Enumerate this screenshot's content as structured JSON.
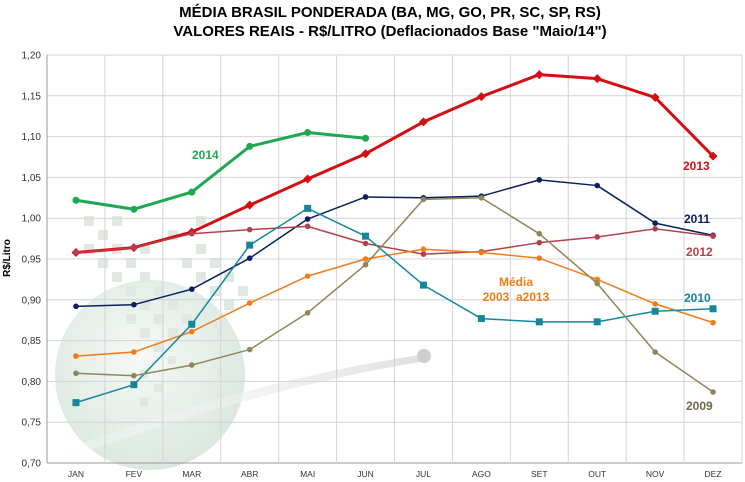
{
  "chart_data": {
    "type": "line",
    "title": "MÉDIA BRASIL PONDERADA (BA, MG, GO, PR, SC, SP, RS)",
    "subtitle": "VALORES REAIS - R$/LITRO (Deflacionados Base \"Maio/14\")",
    "xlabel": "",
    "ylabel": "R$/Litro",
    "ylim": [
      0.7,
      1.2
    ],
    "yticks": [
      "0,70",
      "0,75",
      "0,80",
      "0,85",
      "0,90",
      "0,95",
      "1,00",
      "1,05",
      "1,10",
      "1,15",
      "1,20"
    ],
    "ytick_values": [
      0.7,
      0.75,
      0.8,
      0.85,
      0.9,
      0.95,
      1.0,
      1.05,
      1.1,
      1.15,
      1.2
    ],
    "categories": [
      "JAN",
      "FEV",
      "MAR",
      "ABR",
      "MAI",
      "JUN",
      "JUL",
      "AGO",
      "SET",
      "OUT",
      "NOV",
      "DEZ"
    ],
    "grid": true,
    "series": [
      {
        "name": "2014",
        "label": "2014",
        "color": "#1fa84f",
        "marker": "circle",
        "values": [
          1.022,
          1.011,
          1.032,
          1.088,
          1.105,
          1.098,
          null,
          null,
          null,
          null,
          null,
          null
        ]
      },
      {
        "name": "2013",
        "label": "2013",
        "color": "#d40f14",
        "marker": "diamond",
        "values": [
          0.958,
          0.964,
          0.983,
          1.016,
          1.048,
          1.079,
          1.118,
          1.149,
          1.176,
          1.171,
          1.148,
          1.076
        ]
      },
      {
        "name": "2011",
        "label": "2011",
        "color": "#0b1f5c",
        "marker": "circle",
        "values": [
          0.892,
          0.894,
          0.913,
          0.951,
          0.999,
          1.026,
          1.025,
          1.027,
          1.047,
          1.04,
          0.994,
          0.979
        ]
      },
      {
        "name": "2012",
        "label": "2012",
        "color": "#b3404a",
        "marker": "circle",
        "values": [
          0.958,
          0.964,
          0.981,
          0.986,
          0.99,
          0.969,
          0.956,
          0.959,
          0.97,
          0.977,
          0.987,
          0.978
        ]
      },
      {
        "name": "Média 2003 a 2013",
        "label_lines": [
          "Média",
          "2003  a2013"
        ],
        "color": "#f07c1a",
        "marker": "circle",
        "values": [
          0.831,
          0.836,
          0.861,
          0.896,
          0.929,
          0.95,
          0.962,
          0.958,
          0.951,
          0.925,
          0.895,
          0.872
        ]
      },
      {
        "name": "2010",
        "label": "2010",
        "color": "#14889a",
        "marker": "square",
        "values": [
          0.774,
          0.796,
          0.87,
          0.967,
          1.012,
          0.978,
          0.918,
          0.877,
          0.873,
          0.873,
          0.886,
          0.889
        ]
      },
      {
        "name": "2009",
        "label": "2009",
        "color": "#8f8659",
        "marker": "circle",
        "values": [
          0.81,
          0.807,
          0.82,
          0.839,
          0.884,
          0.943,
          1.023,
          1.025,
          0.981,
          0.92,
          0.836,
          0.787
        ]
      }
    ]
  }
}
